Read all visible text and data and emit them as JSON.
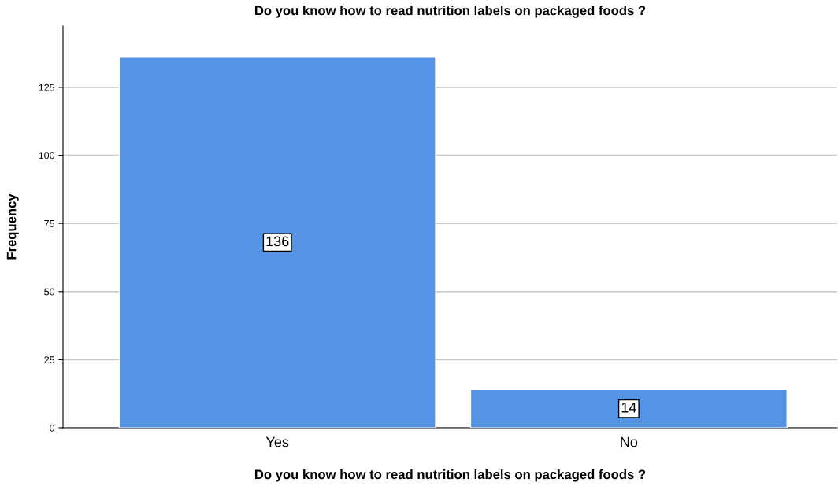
{
  "chart_data": {
    "type": "bar",
    "title": "Do you know how to read nutrition labels on packaged foods ?",
    "xlabel": "Do you know how to read nutrition labels on packaged foods ?",
    "ylabel": "Frequency",
    "categories": [
      "Yes",
      "No"
    ],
    "values": [
      136,
      14
    ],
    "color": "#5594e4",
    "ylim": [
      0,
      147.5
    ],
    "yticks": [
      0,
      25,
      50,
      75,
      100,
      125
    ],
    "grid": "y",
    "data_labels": true
  }
}
